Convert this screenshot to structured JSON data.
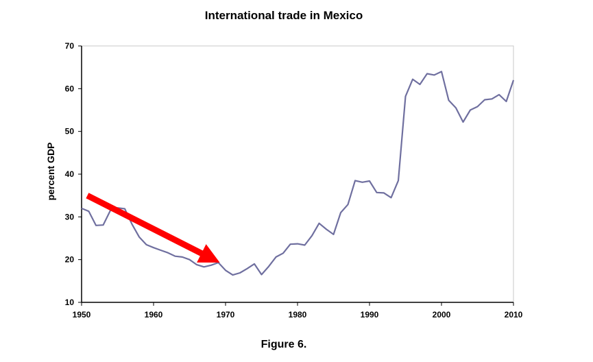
{
  "caption": "Figure 6.",
  "chart_data": {
    "type": "line",
    "title": "International trade in Mexico",
    "xlabel": "",
    "ylabel": "percent GDP",
    "xlim": [
      1950,
      2010
    ],
    "ylim": [
      10,
      70
    ],
    "x_ticks": [
      1950,
      1960,
      1970,
      1980,
      1990,
      2000,
      2010
    ],
    "y_ticks": [
      10,
      20,
      30,
      40,
      50,
      60,
      70
    ],
    "grid": false,
    "legend": "none",
    "series": [
      {
        "color": "#6f6f9f",
        "x": [
          1950,
          1951,
          1952,
          1953,
          1954,
          1955,
          1956,
          1957,
          1958,
          1959,
          1960,
          1961,
          1962,
          1963,
          1964,
          1965,
          1966,
          1967,
          1968,
          1969,
          1970,
          1971,
          1972,
          1973,
          1974,
          1975,
          1976,
          1977,
          1978,
          1979,
          1980,
          1981,
          1982,
          1983,
          1984,
          1985,
          1986,
          1987,
          1988,
          1989,
          1990,
          1991,
          1992,
          1993,
          1994,
          1995,
          1996,
          1997,
          1998,
          1999,
          2000,
          2001,
          2002,
          2003,
          2004,
          2005,
          2006,
          2007,
          2008,
          2009,
          2010
        ],
        "values": [
          32,
          31.3,
          28,
          28.1,
          31.5,
          32.1,
          31.9,
          28.3,
          25.3,
          23.5,
          22.8,
          22.2,
          21.6,
          20.8,
          20.6,
          20.0,
          18.8,
          18.3,
          18.7,
          19.3,
          17.5,
          16.4,
          16.9,
          17.9,
          19.0,
          16.5,
          18.4,
          20.6,
          21.5,
          23.6,
          23.7,
          23.4,
          25.6,
          28.5,
          27.1,
          25.9,
          31.0,
          32.9,
          38.5,
          38.1,
          38.4,
          35.7,
          35.6,
          34.5,
          38.5,
          58.2,
          62.2,
          61.0,
          63.5,
          63.2,
          64.0,
          57.3,
          55.5,
          52.2,
          55.0,
          55.8,
          57.4,
          57.6,
          58.6,
          57.0,
          62.0
        ]
      }
    ],
    "annotations": [
      {
        "type": "arrow",
        "color": "#ff0000",
        "from": [
          1950.8,
          35
        ],
        "to": [
          1969.2,
          19.3
        ]
      }
    ]
  }
}
